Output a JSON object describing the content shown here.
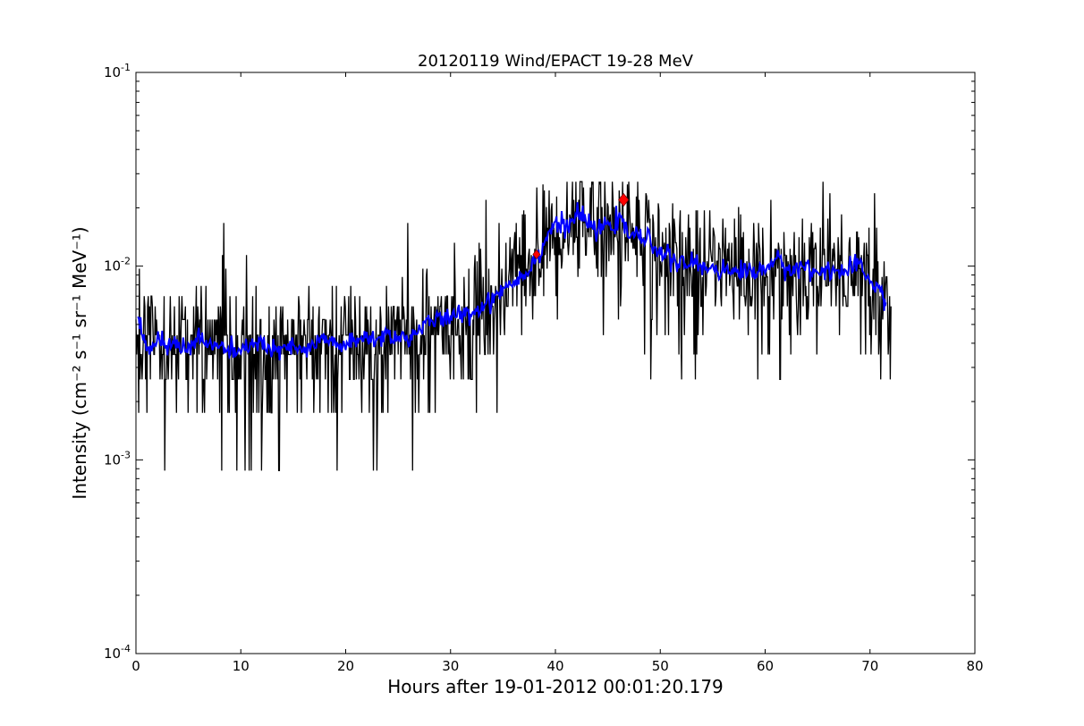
{
  "chart_data": {
    "type": "line",
    "title": "20120119 Wind/EPACT 19-28 MeV",
    "xlabel": "Hours after 19-01-2012 00:01:20.179",
    "ylabel": "Intensity (cm⁻² s⁻¹ sr⁻¹ MeV⁻¹)",
    "xlim": [
      0,
      80
    ],
    "ylim": [
      0.0001,
      0.1
    ],
    "yscale": "log",
    "grid": false,
    "x_ticks": [
      0,
      10,
      20,
      30,
      40,
      50,
      60,
      70,
      80
    ],
    "y_ticks": [
      {
        "value": 0.0001,
        "base": "10",
        "exp": "-4"
      },
      {
        "value": 0.001,
        "base": "10",
        "exp": "-3"
      },
      {
        "value": 0.01,
        "base": "10",
        "exp": "-2"
      },
      {
        "value": 0.1,
        "base": "10",
        "exp": "-1"
      }
    ],
    "series": [
      {
        "color": "#000000",
        "style": "raw",
        "x_range": [
          0,
          72
        ],
        "quantization_levels": [
          0.00088,
          0.00175,
          0.0026,
          0.0035,
          0.0044,
          0.0053,
          0.0062,
          0.007,
          0.0079,
          0.0088,
          0.0097,
          0.0106,
          0.0114,
          0.0123,
          0.0132,
          0.0141,
          0.015,
          0.0158,
          0.0167,
          0.0176,
          0.0185,
          0.0194,
          0.0202,
          0.0211,
          0.022,
          0.0229,
          0.0238,
          0.0246,
          0.0255,
          0.0264,
          0.0273
        ],
        "envelope": [
          {
            "x": 0,
            "y": 0.0045
          },
          {
            "x": 5,
            "y": 0.004
          },
          {
            "x": 10,
            "y": 0.0038
          },
          {
            "x": 15,
            "y": 0.0038
          },
          {
            "x": 20,
            "y": 0.004
          },
          {
            "x": 25,
            "y": 0.0042
          },
          {
            "x": 28,
            "y": 0.0048
          },
          {
            "x": 32,
            "y": 0.0055
          },
          {
            "x": 34,
            "y": 0.0065
          },
          {
            "x": 36,
            "y": 0.0085
          },
          {
            "x": 38,
            "y": 0.0105
          },
          {
            "x": 40,
            "y": 0.015
          },
          {
            "x": 42,
            "y": 0.018
          },
          {
            "x": 44,
            "y": 0.0175
          },
          {
            "x": 46,
            "y": 0.0165
          },
          {
            "x": 48,
            "y": 0.015
          },
          {
            "x": 50,
            "y": 0.0125
          },
          {
            "x": 52,
            "y": 0.0105
          },
          {
            "x": 55,
            "y": 0.01
          },
          {
            "x": 58,
            "y": 0.0095
          },
          {
            "x": 62,
            "y": 0.01
          },
          {
            "x": 65,
            "y": 0.01
          },
          {
            "x": 68,
            "y": 0.0095
          },
          {
            "x": 70,
            "y": 0.009
          },
          {
            "x": 72,
            "y": 0.0065
          }
        ]
      },
      {
        "color": "#0000ff",
        "style": "smoothed",
        "points": [
          {
            "x": 0.2,
            "y": 0.0052
          },
          {
            "x": 1,
            "y": 0.0036
          },
          {
            "x": 2,
            "y": 0.0042
          },
          {
            "x": 3,
            "y": 0.0038
          },
          {
            "x": 4,
            "y": 0.0041
          },
          {
            "x": 5,
            "y": 0.0037
          },
          {
            "x": 6,
            "y": 0.0044
          },
          {
            "x": 7,
            "y": 0.0038
          },
          {
            "x": 8,
            "y": 0.0039
          },
          {
            "x": 9,
            "y": 0.0036
          },
          {
            "x": 10,
            "y": 0.0035
          },
          {
            "x": 11,
            "y": 0.0041
          },
          {
            "x": 12,
            "y": 0.004
          },
          {
            "x": 13,
            "y": 0.0036
          },
          {
            "x": 14,
            "y": 0.0037
          },
          {
            "x": 15,
            "y": 0.0038
          },
          {
            "x": 16,
            "y": 0.0036
          },
          {
            "x": 17,
            "y": 0.0039
          },
          {
            "x": 18,
            "y": 0.0042
          },
          {
            "x": 19,
            "y": 0.004
          },
          {
            "x": 20,
            "y": 0.0039
          },
          {
            "x": 21,
            "y": 0.004
          },
          {
            "x": 22,
            "y": 0.0044
          },
          {
            "x": 23,
            "y": 0.0041
          },
          {
            "x": 24,
            "y": 0.0045
          },
          {
            "x": 25,
            "y": 0.0043
          },
          {
            "x": 26,
            "y": 0.0042
          },
          {
            "x": 27,
            "y": 0.0048
          },
          {
            "x": 28,
            "y": 0.005
          },
          {
            "x": 29,
            "y": 0.0055
          },
          {
            "x": 30,
            "y": 0.0052
          },
          {
            "x": 31,
            "y": 0.0058
          },
          {
            "x": 32,
            "y": 0.0057
          },
          {
            "x": 33,
            "y": 0.0062
          },
          {
            "x": 34,
            "y": 0.0068
          },
          {
            "x": 35,
            "y": 0.0078
          },
          {
            "x": 36,
            "y": 0.0082
          },
          {
            "x": 37,
            "y": 0.0092
          },
          {
            "x": 38,
            "y": 0.0105
          },
          {
            "x": 39,
            "y": 0.0135
          },
          {
            "x": 40,
            "y": 0.017
          },
          {
            "x": 41,
            "y": 0.0155
          },
          {
            "x": 42,
            "y": 0.0185
          },
          {
            "x": 43,
            "y": 0.017
          },
          {
            "x": 44,
            "y": 0.015
          },
          {
            "x": 45,
            "y": 0.0165
          },
          {
            "x": 46,
            "y": 0.017
          },
          {
            "x": 47,
            "y": 0.015
          },
          {
            "x": 48,
            "y": 0.014
          },
          {
            "x": 49,
            "y": 0.0135
          },
          {
            "x": 50,
            "y": 0.012
          },
          {
            "x": 51,
            "y": 0.011
          },
          {
            "x": 52,
            "y": 0.01
          },
          {
            "x": 53,
            "y": 0.0105
          },
          {
            "x": 54,
            "y": 0.0098
          },
          {
            "x": 55,
            "y": 0.01
          },
          {
            "x": 56,
            "y": 0.0095
          },
          {
            "x": 57,
            "y": 0.0092
          },
          {
            "x": 58,
            "y": 0.0098
          },
          {
            "x": 59,
            "y": 0.009
          },
          {
            "x": 60,
            "y": 0.01
          },
          {
            "x": 61,
            "y": 0.0108
          },
          {
            "x": 62,
            "y": 0.0095
          },
          {
            "x": 63,
            "y": 0.01
          },
          {
            "x": 64,
            "y": 0.0098
          },
          {
            "x": 65,
            "y": 0.009
          },
          {
            "x": 66,
            "y": 0.01
          },
          {
            "x": 67,
            "y": 0.0092
          },
          {
            "x": 68,
            "y": 0.0095
          },
          {
            "x": 69,
            "y": 0.01
          },
          {
            "x": 70,
            "y": 0.0085
          },
          {
            "x": 71,
            "y": 0.0075
          },
          {
            "x": 71.5,
            "y": 0.0065
          }
        ]
      }
    ],
    "markers": [
      {
        "x": 38.2,
        "y": 0.0115,
        "color": "#ff0000",
        "shape": "diamond",
        "size": "small"
      },
      {
        "x": 46.5,
        "y": 0.022,
        "color": "#ff0000",
        "shape": "diamond",
        "size": "large"
      }
    ]
  }
}
